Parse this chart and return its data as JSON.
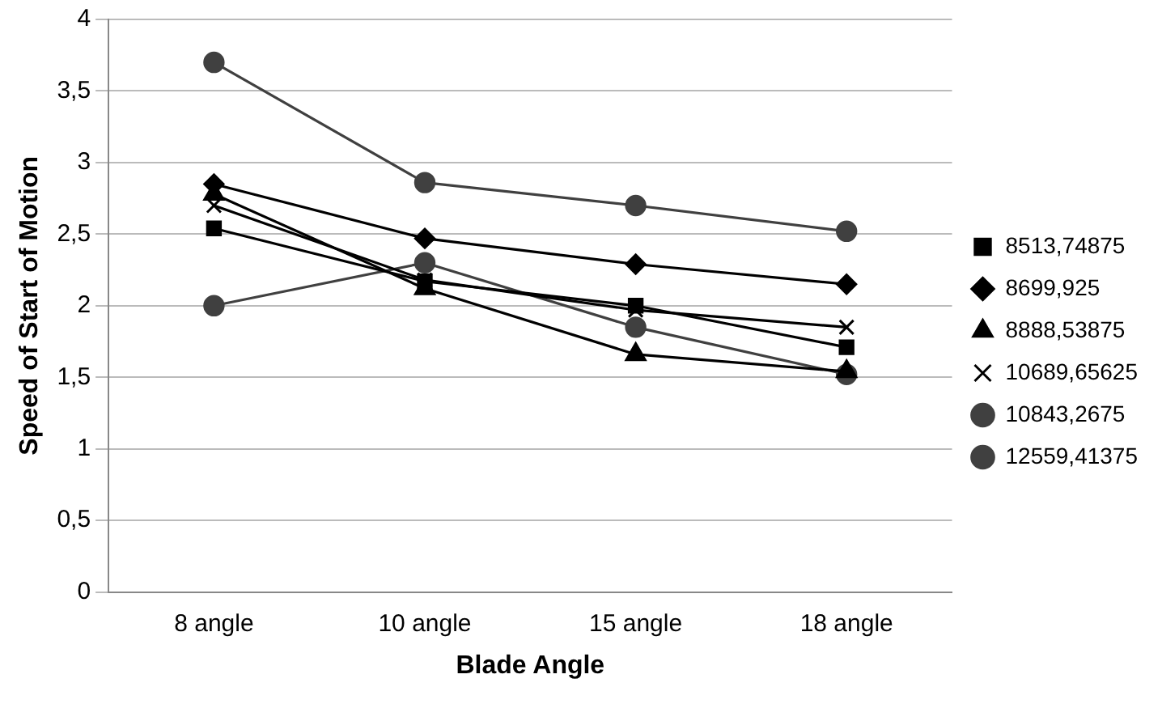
{
  "chart_data": {
    "type": "line",
    "xlabel": "Blade Angle",
    "ylabel": "Speed of Start of Motion",
    "categories": [
      "8 angle",
      "10 angle",
      "15 angle",
      "18 angle"
    ],
    "series": [
      {
        "name": "8513,74875",
        "color": "#000000",
        "marker": "square",
        "values": [
          2.54,
          2.17,
          2.0,
          1.71
        ]
      },
      {
        "name": "8699,925",
        "color": "#000000",
        "marker": "diamond",
        "values": [
          2.85,
          2.47,
          2.29,
          2.15
        ]
      },
      {
        "name": "8888,53875",
        "color": "#000000",
        "marker": "triangle",
        "values": [
          2.78,
          2.12,
          1.66,
          1.54
        ]
      },
      {
        "name": "10689,65625",
        "color": "#000000",
        "marker": "cross",
        "values": [
          2.7,
          2.18,
          1.97,
          1.85
        ]
      },
      {
        "name": "10843,2675",
        "color": "#404040",
        "marker": "circle",
        "values": [
          2.0,
          2.3,
          1.85,
          1.52
        ]
      },
      {
        "name": "12559,41375",
        "color": "#404040",
        "marker": "circle",
        "values": [
          3.7,
          2.86,
          2.7,
          2.52
        ]
      }
    ],
    "ylim": [
      0,
      4
    ],
    "yticks": [
      0,
      {
        "value": 0.5,
        "label": "0,5"
      },
      1,
      {
        "value": 1.5,
        "label": "1,5"
      },
      2,
      {
        "value": 2.5,
        "label": "2,5"
      },
      3,
      {
        "value": 3.5,
        "label": "3,5"
      },
      4
    ],
    "grid": "y",
    "legend": "right",
    "line_style": "solid"
  }
}
